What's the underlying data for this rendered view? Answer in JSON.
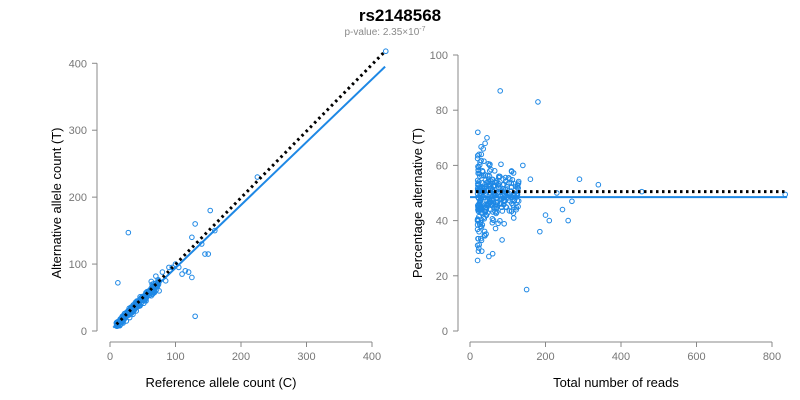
{
  "header": {
    "title": "rs2148568",
    "subtitle_prefix": "p-value: 2.35×10",
    "subtitle_exponent": "-7"
  },
  "colors": {
    "points": "#1e88e5",
    "fit_line": "#1e88e5",
    "reference_line": "#000000",
    "axis": "#888888"
  },
  "chart_data": [
    {
      "type": "scatter",
      "xlabel": "Reference allele count (C)",
      "ylabel": "Alternative allele count (T)",
      "xlim": [
        0,
        425
      ],
      "ylim": [
        0,
        420
      ],
      "xticks": [
        0,
        100,
        200,
        300,
        400
      ],
      "yticks": [
        0,
        100,
        200,
        300,
        400
      ],
      "grid": false,
      "reference_line": {
        "style": "dotted",
        "from": [
          10,
          10
        ],
        "to": [
          420,
          418
        ]
      },
      "fit_line": {
        "style": "solid",
        "from": [
          5,
          5
        ],
        "to": [
          420,
          395
        ]
      },
      "highlighted_points": [
        [
          421,
          418
        ],
        [
          225,
          230
        ],
        [
          153,
          180
        ],
        [
          130,
          160
        ],
        [
          125,
          140
        ],
        [
          140,
          130
        ],
        [
          150,
          115
        ],
        [
          100,
          100
        ],
        [
          95,
          95
        ],
        [
          90,
          95
        ],
        [
          80,
          88
        ],
        [
          70,
          82
        ],
        [
          63,
          74
        ],
        [
          60,
          60
        ],
        [
          28,
          147
        ],
        [
          12,
          72
        ],
        [
          130,
          22
        ],
        [
          115,
          90
        ],
        [
          120,
          88
        ],
        [
          125,
          80
        ],
        [
          145,
          115
        ],
        [
          105,
          95
        ],
        [
          75,
          60
        ],
        [
          65,
          55
        ],
        [
          50,
          50
        ],
        [
          45,
          38
        ],
        [
          40,
          30
        ],
        [
          35,
          25
        ],
        [
          30,
          20
        ],
        [
          25,
          15
        ],
        [
          20,
          12
        ],
        [
          15,
          8
        ],
        [
          55,
          45
        ],
        [
          85,
          75
        ],
        [
          160,
          150
        ],
        [
          110,
          85
        ]
      ],
      "cluster": {
        "x_range": [
          10,
          75
        ],
        "note_count": 300
      }
    },
    {
      "type": "scatter",
      "xlabel": "Total number of reads",
      "ylabel": "Percentage alternative (T)",
      "xlim": [
        0,
        850
      ],
      "ylim": [
        0,
        100
      ],
      "xticks": [
        0,
        200,
        400,
        600,
        800
      ],
      "yticks": [
        0,
        20,
        40,
        60,
        80,
        100
      ],
      "grid": false,
      "reference_line": {
        "style": "dotted",
        "y": 50.5,
        "x_range": [
          0,
          840
        ]
      },
      "fit_line": {
        "style": "solid",
        "y": 48.5,
        "x_range": [
          0,
          840
        ]
      },
      "highlighted_points": [
        [
          835,
          49.5
        ],
        [
          455,
          50.5
        ],
        [
          340,
          53
        ],
        [
          290,
          55
        ],
        [
          270,
          47
        ],
        [
          180,
          83
        ],
        [
          80,
          87
        ],
        [
          150,
          15
        ],
        [
          185,
          36
        ],
        [
          200,
          42
        ],
        [
          210,
          40
        ],
        [
          230,
          50
        ],
        [
          245,
          44
        ],
        [
          260,
          40
        ],
        [
          160,
          55
        ],
        [
          140,
          60
        ],
        [
          125,
          52
        ],
        [
          110,
          58
        ],
        [
          95,
          45
        ],
        [
          85,
          33
        ],
        [
          60,
          28
        ],
        [
          50,
          27
        ],
        [
          45,
          70
        ],
        [
          40,
          68
        ],
        [
          35,
          66
        ],
        [
          30,
          64
        ]
      ],
      "cluster": {
        "x_range": [
          20,
          130
        ],
        "note_count": 300
      }
    }
  ]
}
